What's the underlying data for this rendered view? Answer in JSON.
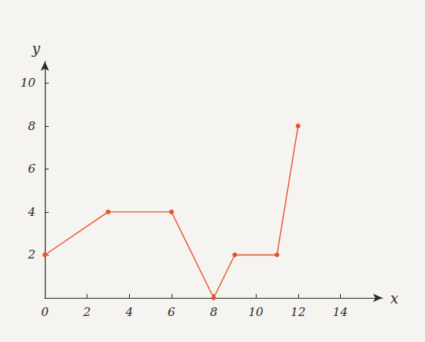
{
  "chart_data": {
    "type": "line",
    "x": [
      0,
      3,
      6,
      8,
      9,
      11,
      12
    ],
    "values": [
      2,
      4,
      4,
      0,
      2,
      2,
      8
    ],
    "color": "#e8532a",
    "marker": "circle",
    "xlabel": "x",
    "ylabel": "y",
    "xlim": [
      0,
      16
    ],
    "ylim": [
      0,
      11
    ],
    "xticks": [
      0,
      2,
      4,
      6,
      8,
      10,
      12,
      14
    ],
    "yticks": [
      2,
      4,
      6,
      8,
      10
    ],
    "grid": false
  }
}
